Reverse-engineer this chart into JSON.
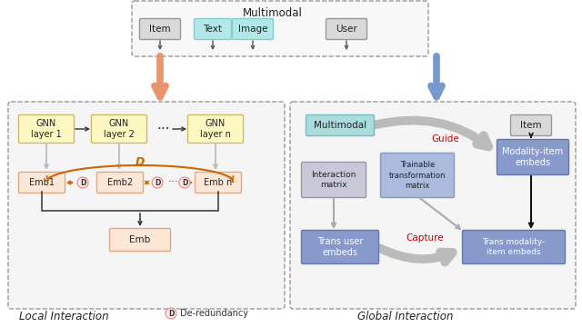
{
  "bg_color": "#ffffff",
  "item_user_box_fill": "#d9d9d9",
  "item_user_box_border": "#999999",
  "text_image_box_fill": "#b2e8e8",
  "text_image_box_border": "#88cccc",
  "gnn_box_fill": "#fef9c3",
  "gnn_box_border": "#ccbb66",
  "emb_box_fill": "#fde8d8",
  "emb_box_border": "#ddaa88",
  "blue_box_dark_fill": "#8899cc",
  "blue_box_dark_border": "#6677aa",
  "blue_box_light_fill": "#aabbdd",
  "blue_box_light_border": "#8899bb",
  "gray_box_fill": "#c8c8d8",
  "gray_box_border": "#9999aa",
  "cyan_box_fill": "#aadddd",
  "cyan_box_border": "#77bbbb",
  "orange_arrow": "#cc6600",
  "red_text": "#cc0000",
  "title_top": "Multimodal",
  "label_item": "Item",
  "label_text": "Text",
  "label_image": "Image",
  "label_user": "User",
  "label_gnn1": "GNN\nlayer 1",
  "label_gnn2": "GNN\nlayer 2",
  "label_gnnn": "GNN\nlayer n",
  "label_emb1": "Emb1",
  "label_emb2": "Emb2",
  "label_embn": "Emb n",
  "label_emb": "Emb",
  "label_D": "D",
  "label_local": "Local Interaction",
  "label_global": "Global Interaction",
  "label_deredundancy": "De-redundancy",
  "label_multimodal_g": "Multimodal",
  "label_item_g": "Item",
  "label_interaction": "Interaction\nmatrix",
  "label_trainable": "Trainable\ntransformation\nmatrix",
  "label_modality_item": "Modality-item\nembeds",
  "label_trans_user": "Trans user\nembeds",
  "label_trans_modality": "Trans modality-\nitem embeds",
  "label_guide": "Guide",
  "label_capture": "Capture"
}
